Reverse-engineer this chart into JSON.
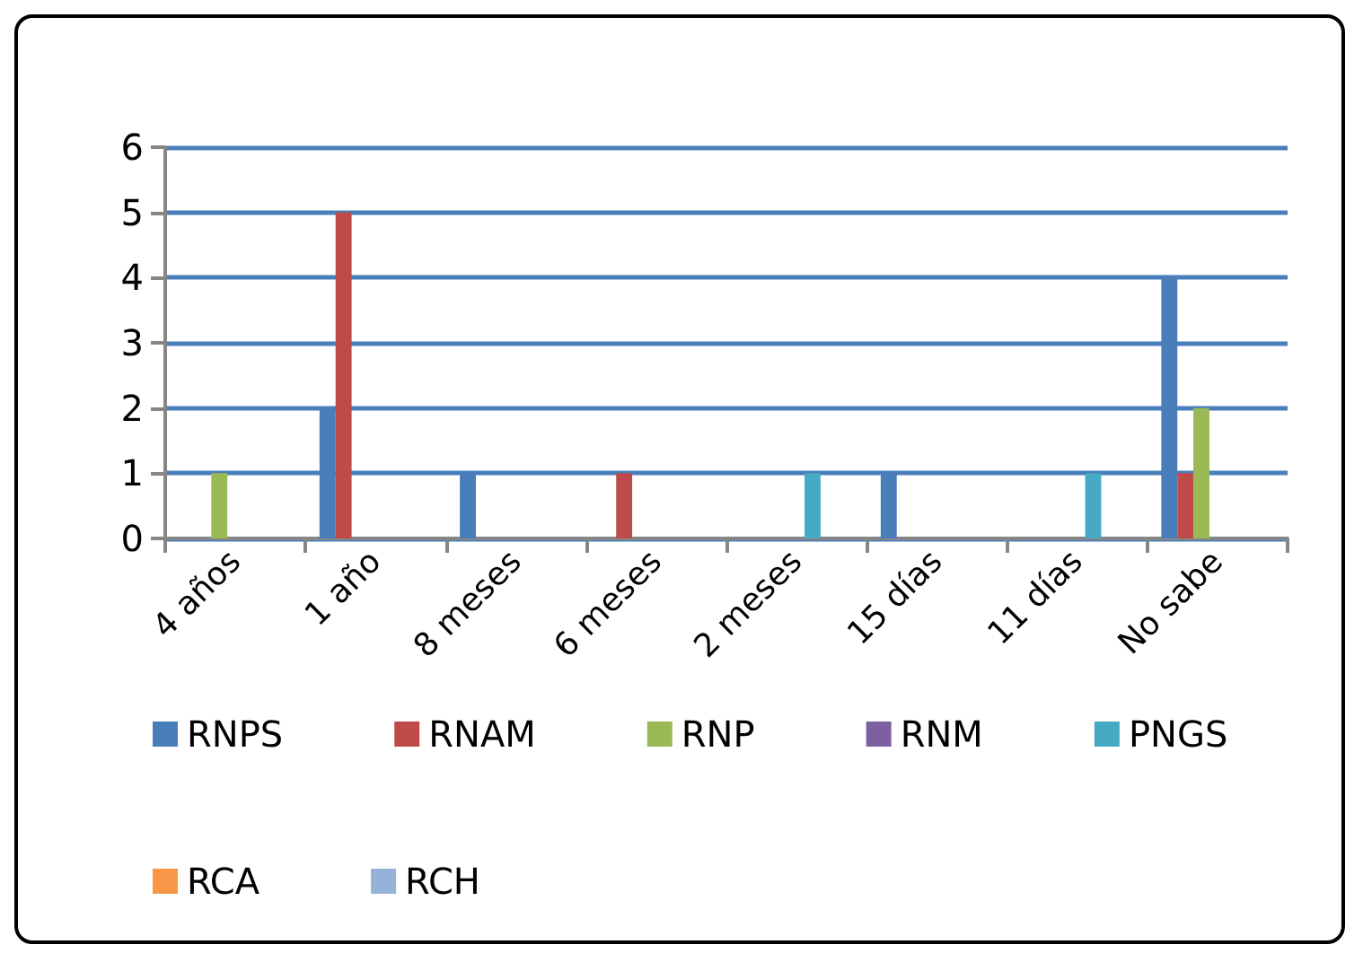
{
  "chart_data": {
    "type": "bar",
    "categories": [
      "4 años",
      "1 año",
      "8 meses",
      "6 meses",
      "2 meses",
      "15 días",
      "11 días",
      "No sabe"
    ],
    "series": [
      {
        "name": "RNPS",
        "color": "#4a7ebb",
        "values": [
          0,
          2,
          1,
          0,
          0,
          1,
          0,
          4
        ]
      },
      {
        "name": "RNAM",
        "color": "#be4b48",
        "values": [
          0,
          5,
          0,
          1,
          0,
          0,
          0,
          1
        ]
      },
      {
        "name": "RNP",
        "color": "#98b954",
        "values": [
          1,
          0,
          0,
          0,
          0,
          0,
          0,
          2
        ]
      },
      {
        "name": "RNM",
        "color": "#7d60a0",
        "values": [
          0,
          0,
          0,
          0,
          0,
          0,
          0,
          0
        ]
      },
      {
        "name": "PNGS",
        "color": "#46aac5",
        "values": [
          0,
          0,
          0,
          0,
          1,
          0,
          1,
          0
        ]
      },
      {
        "name": "RCA",
        "color": "#f79646",
        "values": [
          0,
          0,
          0,
          0,
          0,
          0,
          0,
          0
        ]
      },
      {
        "name": "RCH",
        "color": "#95b3d7",
        "values": [
          0,
          0,
          0,
          0,
          0,
          0,
          0,
          0
        ]
      }
    ],
    "ylim": [
      0,
      6
    ],
    "yticks": [
      0,
      1,
      2,
      3,
      4,
      5,
      6
    ],
    "grid": "y",
    "legend": "bottom"
  }
}
